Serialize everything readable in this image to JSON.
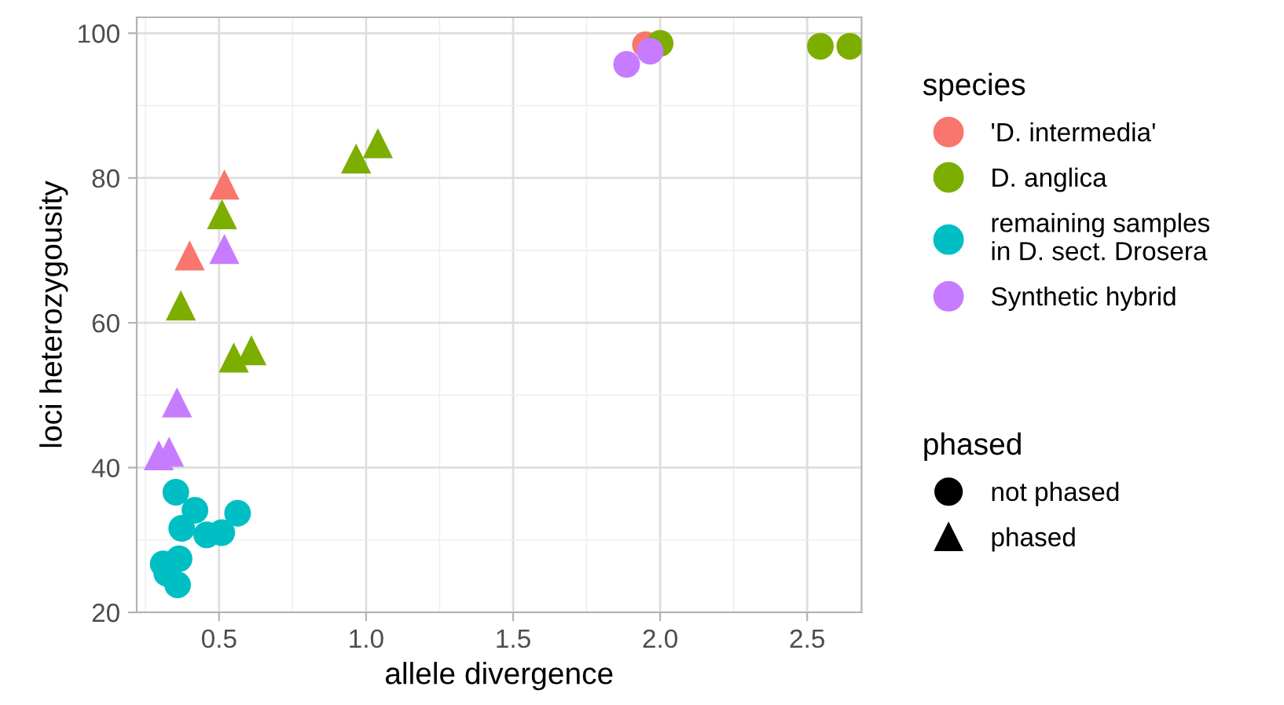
{
  "chart_data": {
    "type": "scatter",
    "xlabel": "allele divergence",
    "ylabel": "loci heterozygousity",
    "legend_title": [
      "species",
      "phased"
    ],
    "legend": "right",
    "grid": true,
    "xlim": [
      0.22,
      2.685
    ],
    "ylim": [
      20,
      102.2
    ],
    "xticks": [
      {
        "value": 0.5,
        "label": "0.5"
      },
      {
        "value": 1.0,
        "label": "1.0"
      },
      {
        "value": 1.5,
        "label": "1.5"
      },
      {
        "value": 2.0,
        "label": "2.0"
      },
      {
        "value": 2.5,
        "label": "2.5"
      }
    ],
    "yticks": [
      20,
      40,
      60,
      80,
      100
    ],
    "annotations": [
      "not phased",
      "phased"
    ],
    "series": [
      {
        "name": "'D. intermedia'",
        "color": "#f8766d",
        "marker": "circle",
        "x": [
          1.95
        ],
        "values": [
          98.4
        ]
      },
      {
        "color": "#f8766d",
        "marker": "triangle",
        "x": [
          0.518,
          0.4
        ],
        "values": [
          79.1,
          69.3
        ]
      },
      {
        "name": "D. anglica",
        "color": "#7cae00",
        "marker": "circle",
        "x": [
          2.0,
          2.545,
          2.645
        ],
        "values": [
          98.6,
          98.2,
          98.2
        ]
      },
      {
        "color": "#7cae00",
        "marker": "triangle",
        "x": [
          0.51,
          0.37,
          0.55,
          0.61,
          0.966,
          1.04
        ],
        "values": [
          75.0,
          62.4,
          55.2,
          56.2,
          82.7,
          84.8
        ]
      },
      {
        "name": "remaining samples\nin D. sect. Drosera",
        "color": "#00bfc4",
        "marker": "circle",
        "x": [
          0.353,
          0.418,
          0.563,
          0.373,
          0.458,
          0.509,
          0.31,
          0.364,
          0.322,
          0.359
        ],
        "values": [
          36.6,
          34.1,
          33.7,
          31.6,
          30.7,
          31.0,
          26.7,
          27.4,
          25.4,
          23.8
        ]
      },
      {
        "name": "Synthetic hybrid",
        "color": "#c77cff",
        "marker": "circle",
        "x": [
          1.886,
          1.966
        ],
        "values": [
          95.7,
          97.5
        ]
      },
      {
        "color": "#c77cff",
        "marker": "triangle",
        "x": [
          0.518,
          0.357,
          0.33,
          0.295
        ],
        "values": [
          70.2,
          49.0,
          42.2,
          41.7
        ]
      }
    ]
  }
}
